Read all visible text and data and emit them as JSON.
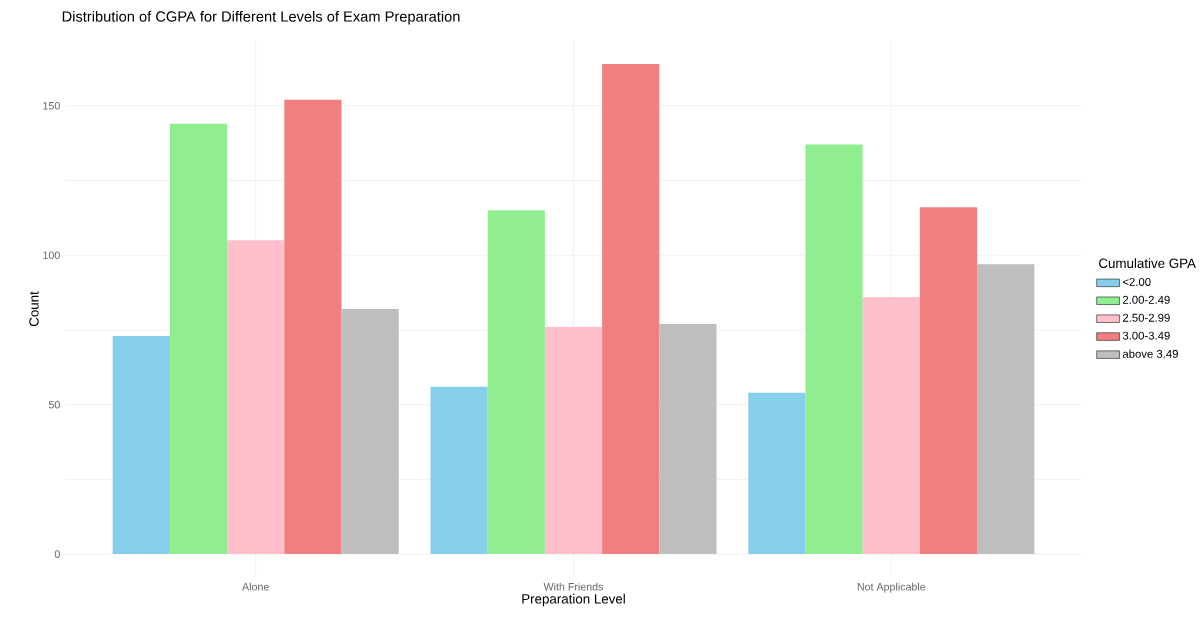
{
  "chart_data": {
    "type": "bar",
    "title": "Distribution of CGPA for Different Levels of Exam Preparation",
    "xlabel": "Preparation Level",
    "ylabel": "Count",
    "legend_title": "Cumulative GPA",
    "categories": [
      "Alone",
      "With Friends",
      "Not Applicable"
    ],
    "series": [
      {
        "name": "<2.00",
        "color": "#87ceeb",
        "values": [
          73,
          56,
          54
        ]
      },
      {
        "name": "2.00-2.49",
        "color": "#90ee90",
        "values": [
          144,
          115,
          137
        ]
      },
      {
        "name": "2.50-2.99",
        "color": "#ffc0cb",
        "values": [
          105,
          76,
          86
        ]
      },
      {
        "name": "3.00-3.49",
        "color": "#f08080",
        "values": [
          152,
          164,
          116
        ]
      },
      {
        "name": "above 3.49",
        "color": "#bebebe",
        "values": [
          82,
          77,
          97
        ]
      }
    ],
    "ylim": [
      -8,
      172
    ],
    "yticks": [
      0,
      {
        "value": 25,
        "label": null
      },
      50,
      {
        "value": 75,
        "label": null
      },
      100,
      {
        "value": 125,
        "label": null
      },
      150
    ],
    "grid": true,
    "legend": "right"
  }
}
